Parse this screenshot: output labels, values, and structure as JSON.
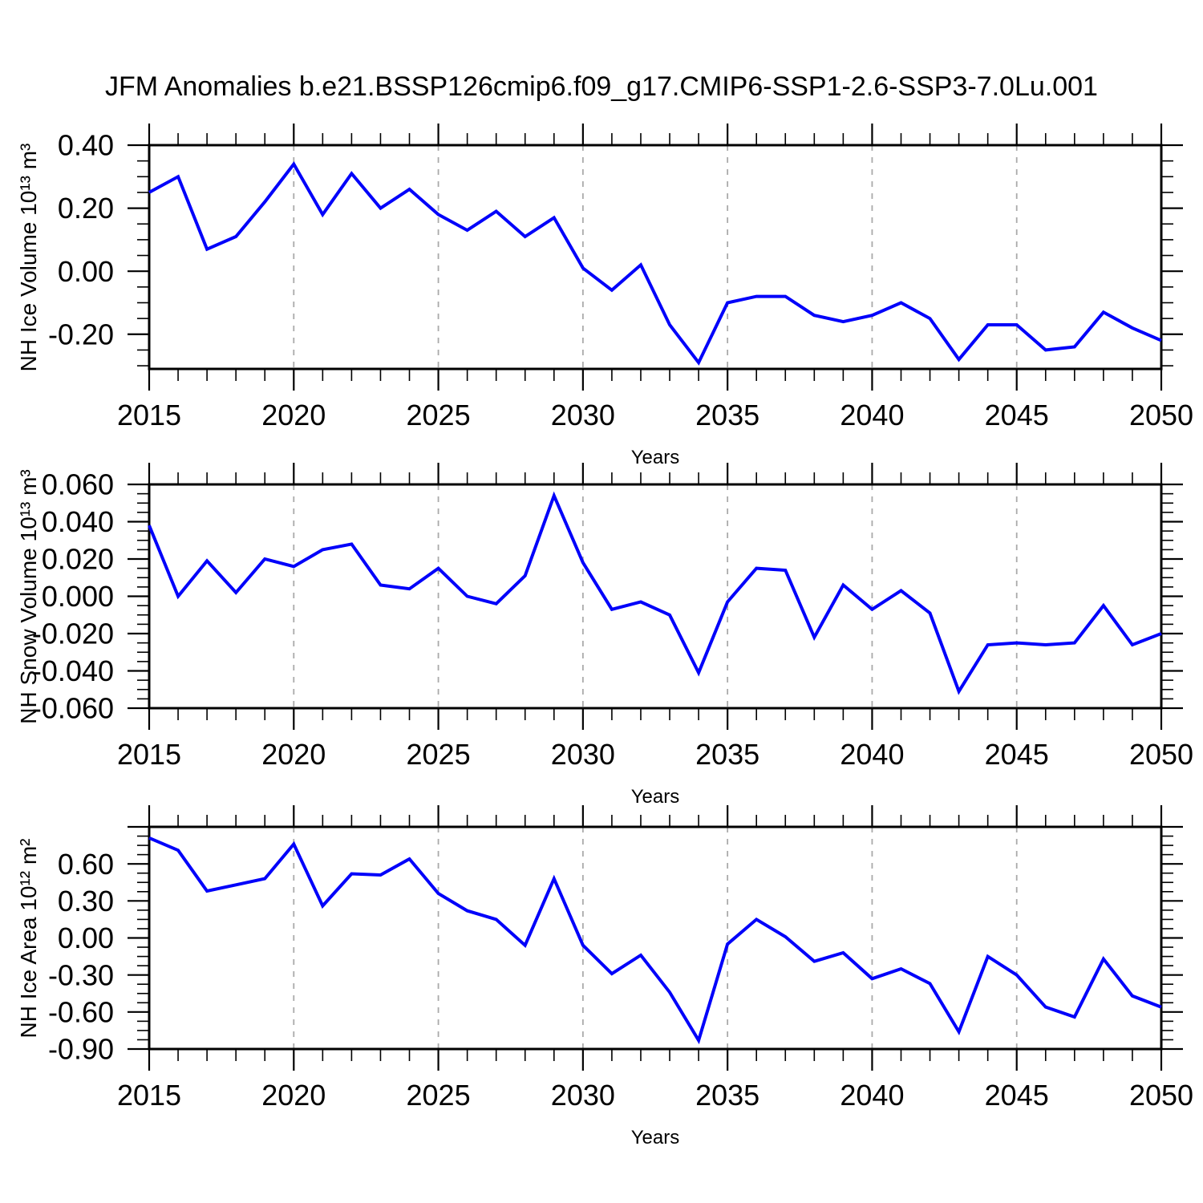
{
  "page": {
    "title": "JFM Anomalies b.e21.BSSP126cmip6.f09_g17.CMIP6-SSP1-2.6-SSP3-7.0Lu.001",
    "background": "#ffffff"
  },
  "style": {
    "line_color": "#0000fa",
    "axis_color": "#000000",
    "grid_color": "#aaaaaa",
    "text_color": "#000000"
  },
  "chart_data": [
    {
      "type": "line",
      "title": "",
      "xlabel": "Years",
      "ylabel": "NH Ice Volume 10¹³ m³",
      "x": [
        2015,
        2016,
        2017,
        2018,
        2019,
        2020,
        2021,
        2022,
        2023,
        2024,
        2025,
        2026,
        2027,
        2028,
        2029,
        2030,
        2031,
        2032,
        2033,
        2034,
        2035,
        2036,
        2037,
        2038,
        2039,
        2040,
        2041,
        2042,
        2043,
        2044,
        2045,
        2046,
        2047,
        2048,
        2049,
        2050
      ],
      "values": [
        0.25,
        0.3,
        0.07,
        0.11,
        0.22,
        0.34,
        0.18,
        0.31,
        0.2,
        0.26,
        0.18,
        0.13,
        0.19,
        0.11,
        0.17,
        0.01,
        -0.06,
        0.02,
        -0.17,
        -0.29,
        -0.1,
        -0.08,
        -0.08,
        -0.14,
        -0.16,
        -0.14,
        -0.1,
        -0.15,
        -0.28,
        -0.17,
        -0.17,
        -0.25,
        -0.24,
        -0.13,
        -0.18,
        -0.22
      ],
      "xlim": [
        2015,
        2050
      ],
      "ylim": [
        -0.31,
        0.4
      ],
      "grid": "vertical-dashed-at-major-years",
      "legend": "none",
      "yticks": {
        "major": [
          0.4,
          0.2,
          0.0,
          -0.2
        ],
        "labels": [
          "0.40",
          "0.20",
          "0.00",
          "-0.20"
        ],
        "minor_step": 0.05
      },
      "xticks": {
        "major": [
          2015,
          2020,
          2025,
          2030,
          2035,
          2040,
          2045,
          2050
        ],
        "labels": [
          "2015",
          "2020",
          "2025",
          "2030",
          "2035",
          "2040",
          "2045",
          "2050"
        ],
        "minor_step": 1
      },
      "grid_years": [
        2020,
        2025,
        2030,
        2035,
        2040,
        2045
      ]
    },
    {
      "type": "line",
      "title": "",
      "xlabel": "Years",
      "ylabel": "NH Snow Volume 10¹³ m³",
      "x": [
        2015,
        2016,
        2017,
        2018,
        2019,
        2020,
        2021,
        2022,
        2023,
        2024,
        2025,
        2026,
        2027,
        2028,
        2029,
        2030,
        2031,
        2032,
        2033,
        2034,
        2035,
        2036,
        2037,
        2038,
        2039,
        2040,
        2041,
        2042,
        2043,
        2044,
        2045,
        2046,
        2047,
        2048,
        2049,
        2050
      ],
      "values": [
        0.038,
        0.0,
        0.019,
        0.002,
        0.02,
        0.016,
        0.025,
        0.028,
        0.006,
        0.004,
        0.015,
        0.0,
        -0.004,
        0.011,
        0.054,
        0.018,
        -0.007,
        -0.003,
        -0.01,
        -0.041,
        -0.003,
        0.015,
        0.014,
        -0.022,
        0.006,
        -0.007,
        0.003,
        -0.009,
        -0.051,
        -0.026,
        -0.025,
        -0.026,
        -0.025,
        -0.005,
        -0.026,
        -0.02
      ],
      "xlim": [
        2015,
        2050
      ],
      "ylim": [
        -0.06,
        0.06
      ],
      "grid": "vertical-dashed-at-major-years",
      "legend": "none",
      "yticks": {
        "major": [
          0.06,
          0.04,
          0.02,
          0.0,
          -0.02,
          -0.04,
          -0.06
        ],
        "labels": [
          "0.060",
          "0.040",
          "0.020",
          "0.000",
          "-0.020",
          "-0.040",
          "-0.060"
        ],
        "minor_step": 0.005
      },
      "xticks": {
        "major": [
          2015,
          2020,
          2025,
          2030,
          2035,
          2040,
          2045,
          2050
        ],
        "labels": [
          "2015",
          "2020",
          "2025",
          "2030",
          "2035",
          "2040",
          "2045",
          "2050"
        ],
        "minor_step": 1
      },
      "grid_years": [
        2020,
        2025,
        2030,
        2035,
        2040,
        2045
      ]
    },
    {
      "type": "line",
      "title": "",
      "xlabel": "Years",
      "ylabel": "NH Ice Area 10¹² m²",
      "x": [
        2015,
        2016,
        2017,
        2018,
        2019,
        2020,
        2021,
        2022,
        2023,
        2024,
        2025,
        2026,
        2027,
        2028,
        2029,
        2030,
        2031,
        2032,
        2033,
        2034,
        2035,
        2036,
        2037,
        2038,
        2039,
        2040,
        2041,
        2042,
        2043,
        2044,
        2045,
        2046,
        2047,
        2048,
        2049,
        2050
      ],
      "values": [
        0.81,
        0.71,
        0.38,
        0.43,
        0.48,
        0.76,
        0.26,
        0.52,
        0.51,
        0.64,
        0.36,
        0.22,
        0.15,
        -0.06,
        0.48,
        -0.06,
        -0.29,
        -0.14,
        -0.44,
        -0.83,
        -0.05,
        0.15,
        0.01,
        -0.19,
        -0.12,
        -0.33,
        -0.25,
        -0.37,
        -0.76,
        -0.15,
        -0.3,
        -0.56,
        -0.64,
        -0.17,
        -0.47,
        -0.56
      ],
      "xlim": [
        2015,
        2050
      ],
      "ylim": [
        -0.9,
        0.9
      ],
      "grid": "vertical-dashed-at-major-years",
      "legend": "none",
      "yticks": {
        "major": [
          0.9,
          0.6,
          0.3,
          0.0,
          -0.3,
          -0.6,
          -0.9
        ],
        "labels": [
          "",
          "0.60",
          "0.30",
          "0.00",
          "-0.30",
          "-0.60",
          "-0.90"
        ],
        "minor_step": 0.075
      },
      "xticks": {
        "major": [
          2015,
          2020,
          2025,
          2030,
          2035,
          2040,
          2045,
          2050
        ],
        "labels": [
          "2015",
          "2020",
          "2025",
          "2030",
          "2035",
          "2040",
          "2045",
          "2050"
        ],
        "minor_step": 1
      },
      "grid_years": [
        2020,
        2025,
        2030,
        2035,
        2040,
        2045
      ]
    }
  ]
}
